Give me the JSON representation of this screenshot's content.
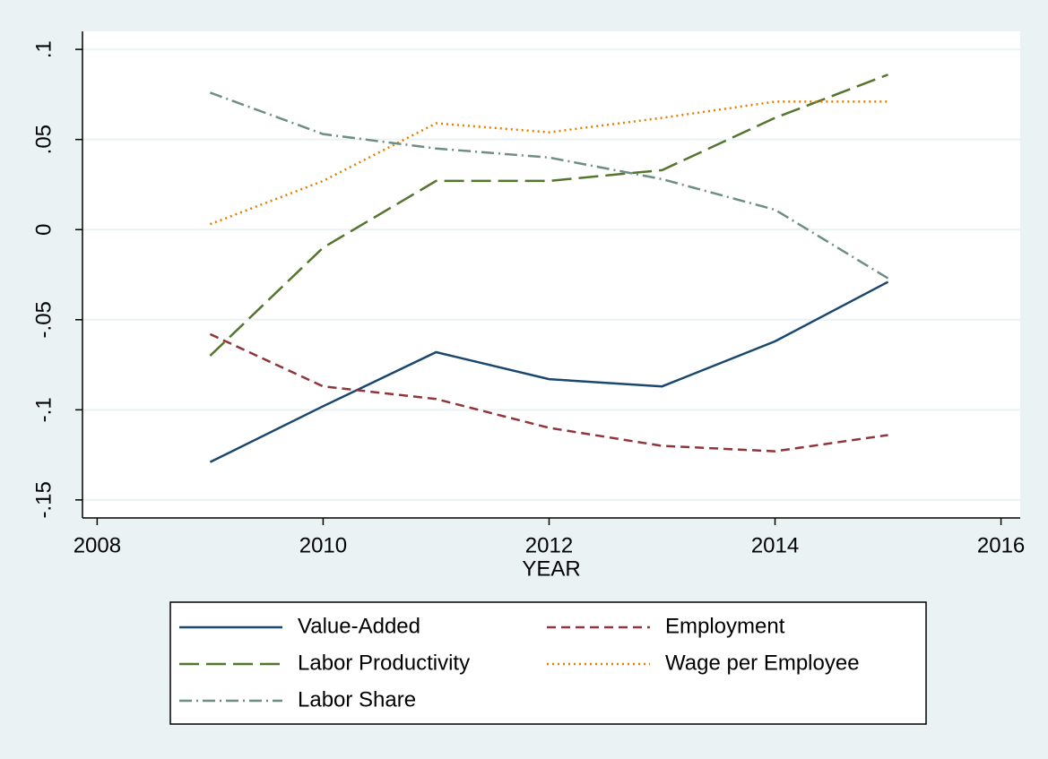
{
  "chart_data": {
    "type": "line",
    "x_label": "YEAR",
    "x": [
      2009,
      2010,
      2011,
      2012,
      2013,
      2014,
      2015
    ],
    "series": [
      {
        "name": "Value-Added",
        "color": "#1a476f",
        "dash": "solid",
        "values": [
          -0.129,
          -0.098,
          -0.068,
          -0.083,
          -0.087,
          -0.062,
          -0.029
        ]
      },
      {
        "name": "Employment",
        "color": "#90353b",
        "dash": "dash",
        "values": [
          -0.058,
          -0.087,
          -0.094,
          -0.11,
          -0.12,
          -0.123,
          -0.114
        ]
      },
      {
        "name": "Labor Productivity",
        "color": "#55752f",
        "dash": "longdash",
        "values": [
          -0.07,
          -0.01,
          0.027,
          0.027,
          0.033,
          0.062,
          0.086
        ]
      },
      {
        "name": "Wage per Employee",
        "color": "#e37e00",
        "dash": "dot",
        "values": [
          0.003,
          0.027,
          0.059,
          0.054,
          0.062,
          0.071,
          0.071
        ]
      },
      {
        "name": "Labor Share",
        "color": "#6e8e84",
        "dash": "dashdot",
        "values": [
          0.076,
          0.053,
          0.045,
          0.04,
          0.028,
          0.011,
          -0.027
        ]
      }
    ],
    "xlim": [
      2007.87,
      2016.17
    ],
    "xticks": [
      2008,
      2010,
      2012,
      2014,
      2016
    ],
    "ylim": [
      -0.16,
      0.11
    ],
    "yticks": [
      {
        "value": -0.15,
        "label": "-.15"
      },
      {
        "value": -0.1,
        "label": "-.1"
      },
      {
        "value": -0.05,
        "label": "-.05"
      },
      {
        "value": 0,
        "label": "0"
      },
      {
        "value": 0.05,
        "label": ".05"
      },
      {
        "value": 0.1,
        "label": ".1"
      }
    ],
    "grid": true,
    "legend": "bottom"
  }
}
